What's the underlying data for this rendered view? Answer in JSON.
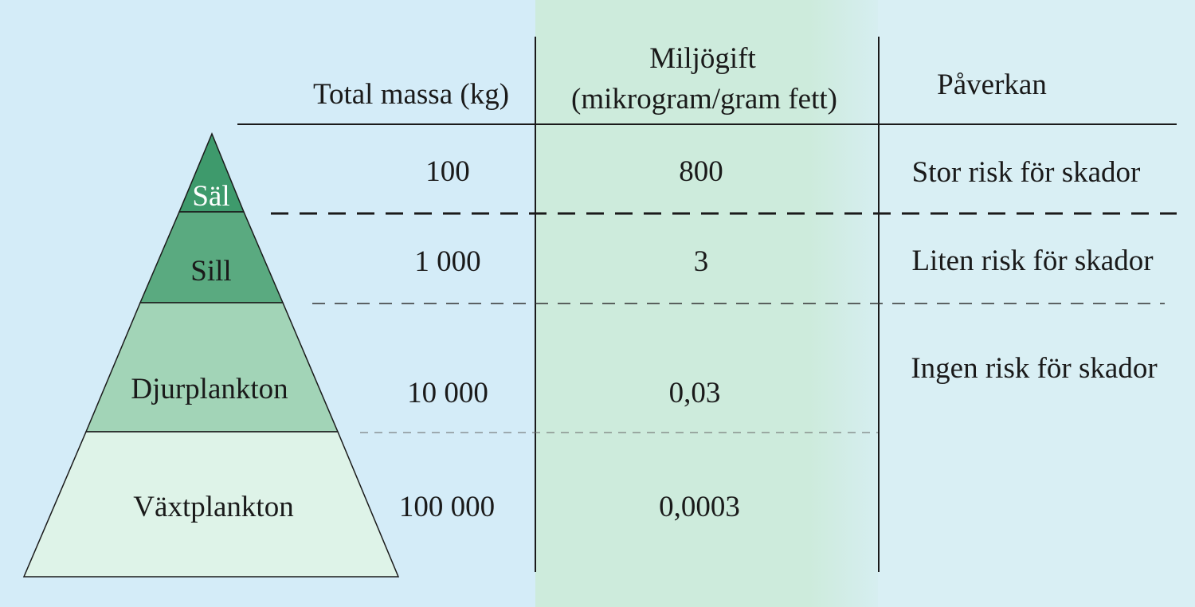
{
  "headers": {
    "mass": "Total massa (kg)",
    "toxin_line1": "Miljögift",
    "toxin_line2": "(mikrogram/gram fett)",
    "effect": "Påverkan"
  },
  "levels": [
    {
      "name": "Säl",
      "mass": "100",
      "toxin": "800",
      "color": "#3e9a6c"
    },
    {
      "name": "Sill",
      "mass": "1 000",
      "toxin": "3",
      "color": "#5aaa80"
    },
    {
      "name": "Djurplankton",
      "mass": "10 000",
      "toxin": "0,03",
      "color": "#a2d4b7"
    },
    {
      "name": "Växtplankton",
      "mass": "100 000",
      "toxin": "0,0003",
      "color": "#def3e8"
    }
  ],
  "effects": [
    "Stor risk för skador",
    "Liten risk för skador",
    "Ingen risk för skador"
  ],
  "colors": {
    "background_left": "#d4ecf8",
    "column_highlight": "#cdebdc",
    "background_right": "#d9eff4",
    "line": "#1a1a1a"
  }
}
